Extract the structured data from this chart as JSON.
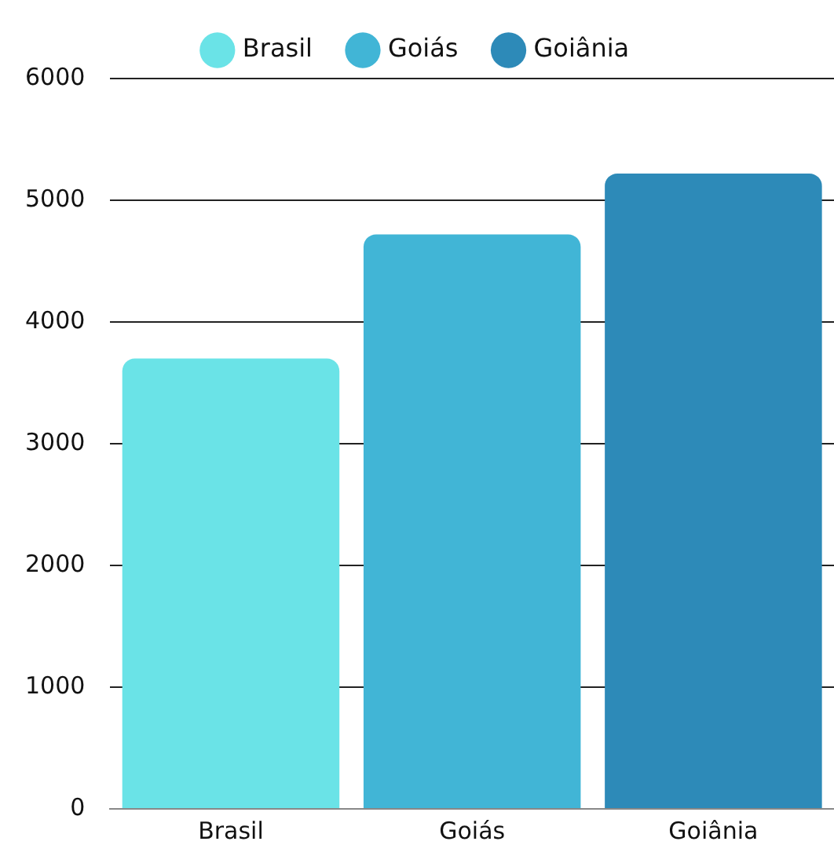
{
  "chart_data": {
    "type": "bar",
    "categories": [
      "Brasil",
      "Goiás",
      "Goiânia"
    ],
    "series": [
      {
        "name": "Brasil",
        "color": "#6ae3e7",
        "values": [
          3700,
          null,
          null
        ]
      },
      {
        "name": "Goiás",
        "color": "#41b5d6",
        "values": [
          null,
          4720,
          null
        ]
      },
      {
        "name": "Goiânia",
        "color": "#2d8ab8",
        "values": [
          null,
          null,
          5220
        ]
      }
    ],
    "ylim": [
      0,
      6000
    ],
    "yticks": [
      0,
      1000,
      2000,
      3000,
      4000,
      5000,
      6000
    ],
    "grid": "y",
    "legend": "top"
  }
}
